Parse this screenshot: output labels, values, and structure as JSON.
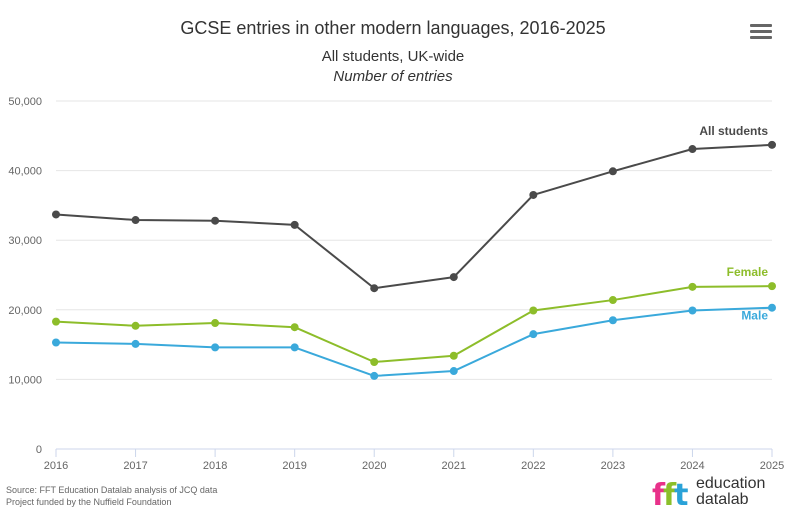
{
  "chart_data": {
    "type": "line",
    "title": "GCSE entries in other modern languages, 2016-2025",
    "subtitle": "All students, UK-wide",
    "note": "Number of entries",
    "categories": [
      "2016",
      "2017",
      "2018",
      "2019",
      "2020",
      "2021",
      "2022",
      "2023",
      "2024",
      "2025"
    ],
    "y_ticks": [
      "0",
      "10,000",
      "20,000",
      "30,000",
      "40,000",
      "50,000"
    ],
    "ylim": [
      0,
      50000
    ],
    "grid": true,
    "series": [
      {
        "name": "All students",
        "color": "#4a4a4a",
        "values": [
          33700,
          32900,
          32800,
          32200,
          23100,
          24700,
          36500,
          39900,
          43100,
          43700
        ]
      },
      {
        "name": "Female",
        "color": "#8dbd2a",
        "values": [
          18300,
          17700,
          18100,
          17500,
          12500,
          13400,
          19900,
          21400,
          23300,
          23400
        ]
      },
      {
        "name": "Male",
        "color": "#3aa9db",
        "values": [
          15300,
          15100,
          14600,
          14600,
          10500,
          11200,
          16500,
          18500,
          19900,
          20300
        ]
      }
    ]
  },
  "source_lines": [
    "Source: FFT Education Datalab analysis of JCQ data",
    "Project funded by the Nuffield Foundation"
  ],
  "logo": {
    "mark": "fft",
    "word_line1": "education",
    "word_line2_a": "data",
    "word_line2_b": "lab"
  },
  "menu_icon": "hamburger-icon"
}
